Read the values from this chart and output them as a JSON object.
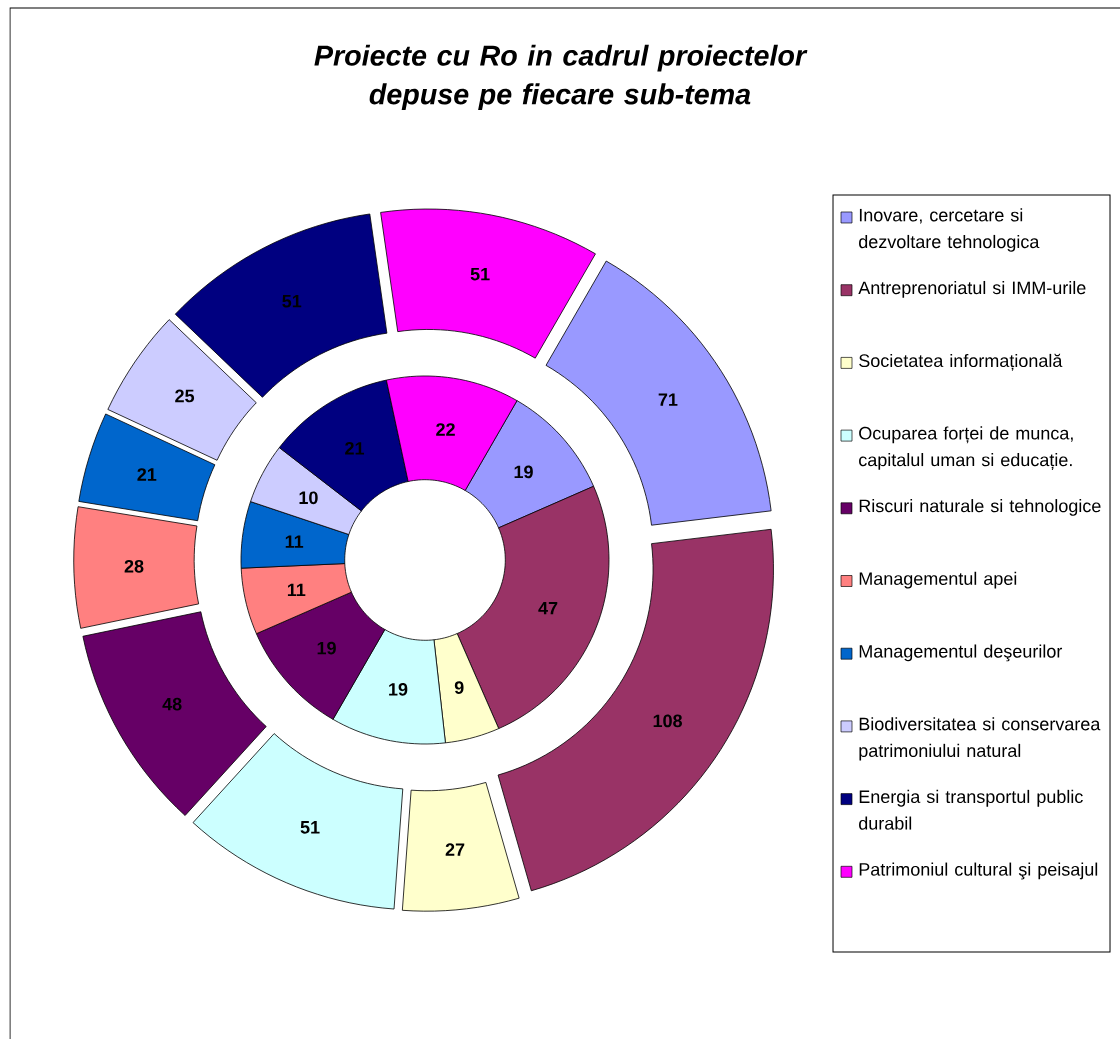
{
  "chart_data": {
    "type": "donut",
    "title": "Proiecte cu Ro in cadrul proiectelor depuse pe fiecare sub-tema",
    "categories": [
      "Inovare, cercetare si dezvoltare tehnologica",
      "Antreprenoriatul si IMM-urile",
      "Societatea informațională",
      "Ocuparea forței de munca, capitalul uman si educație.",
      "Riscuri naturale si tehnologice",
      "Managementul apei",
      "Managementul deşeurilor",
      "Biodiversitatea si conservarea patrimoniului natural",
      "Energia si transportul public durabil",
      "Patrimoniul cultural şi peisajul"
    ],
    "colors": [
      "#9999ff",
      "#993366",
      "#ffffcc",
      "#ccffff",
      "#660066",
      "#ff8080",
      "#0066cc",
      "#ccccff",
      "#000080",
      "#ff00ff"
    ],
    "series": [
      {
        "values": [
          19,
          47,
          9,
          19,
          19,
          11,
          11,
          10,
          21,
          22
        ]
      },
      {
        "values": [
          71,
          108,
          27,
          51,
          48,
          28,
          21,
          25,
          51,
          51
        ]
      }
    ],
    "data_labels": true,
    "legend": "right"
  }
}
